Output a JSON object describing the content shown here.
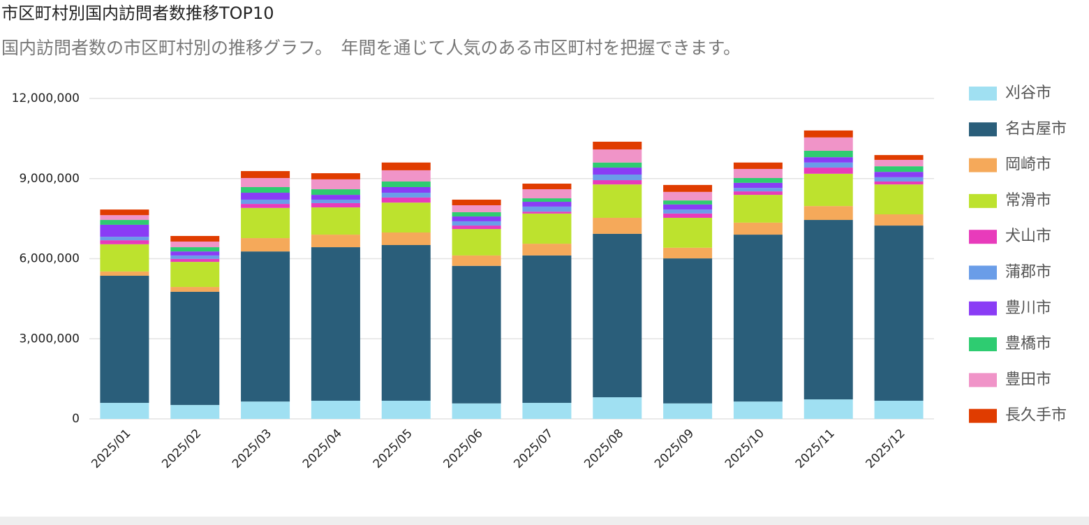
{
  "chart_data": {
    "type": "stacked_bar",
    "title": "市区町村別国内訪問者数推移TOP10",
    "subtitle": "国内訪問者数の市区町村別の推移グラフ。　年間を通じて人気のある市区町村を把握できます。",
    "categories": [
      "2025/01",
      "2025/02",
      "2025/03",
      "2025/04",
      "2025/05",
      "2025/06",
      "2025/07",
      "2025/08",
      "2025/09",
      "2025/10",
      "2025/11",
      "2025/12"
    ],
    "series": [
      {
        "name": "刈谷市",
        "color": "#a0e0f2",
        "values": [
          600000,
          520000,
          650000,
          680000,
          680000,
          580000,
          600000,
          810000,
          580000,
          650000,
          730000,
          680000
        ]
      },
      {
        "name": "名古屋市",
        "color": "#2a5e7a",
        "values": [
          4760000,
          4240000,
          5620000,
          5750000,
          5830000,
          5150000,
          5520000,
          6120000,
          5430000,
          6250000,
          6720000,
          6560000
        ]
      },
      {
        "name": "岡崎市",
        "color": "#f5a95a",
        "values": [
          160000,
          180000,
          500000,
          470000,
          470000,
          390000,
          440000,
          600000,
          400000,
          450000,
          520000,
          420000
        ]
      },
      {
        "name": "常滑市",
        "color": "#bde22e",
        "values": [
          1020000,
          940000,
          1130000,
          1020000,
          1120000,
          990000,
          1130000,
          1250000,
          1120000,
          1040000,
          1210000,
          1120000
        ]
      },
      {
        "name": "犬山市",
        "color": "#e83bbb",
        "values": [
          150000,
          110000,
          150000,
          160000,
          190000,
          130000,
          70000,
          160000,
          160000,
          130000,
          230000,
          110000
        ]
      },
      {
        "name": "蒲郡市",
        "color": "#6a9de8",
        "values": [
          130000,
          130000,
          160000,
          130000,
          180000,
          160000,
          190000,
          210000,
          150000,
          130000,
          190000,
          160000
        ]
      },
      {
        "name": "豊川市",
        "color": "#8a3cf5",
        "values": [
          450000,
          150000,
          260000,
          180000,
          210000,
          180000,
          180000,
          260000,
          190000,
          190000,
          200000,
          200000
        ]
      },
      {
        "name": "豊橋市",
        "color": "#2ecc71",
        "values": [
          180000,
          160000,
          210000,
          210000,
          210000,
          160000,
          130000,
          190000,
          150000,
          180000,
          240000,
          210000
        ]
      },
      {
        "name": "豊田市",
        "color": "#f094c8",
        "values": [
          180000,
          210000,
          340000,
          370000,
          420000,
          260000,
          340000,
          490000,
          320000,
          340000,
          500000,
          240000
        ]
      },
      {
        "name": "長久手市",
        "color": "#e03c00",
        "values": [
          210000,
          210000,
          260000,
          230000,
          290000,
          210000,
          210000,
          290000,
          260000,
          240000,
          260000,
          180000
        ]
      }
    ],
    "ylim": [
      0,
      12000000
    ],
    "yticks": [
      0,
      {
        "value": 3000000,
        "label": "3,000,000"
      },
      {
        "value": 6000000,
        "label": "6,000,000"
      },
      {
        "value": 9000000,
        "label": "9,000,000"
      },
      {
        "value": 12000000,
        "label": "12,000,000"
      }
    ],
    "grid": true,
    "legend": "right"
  }
}
